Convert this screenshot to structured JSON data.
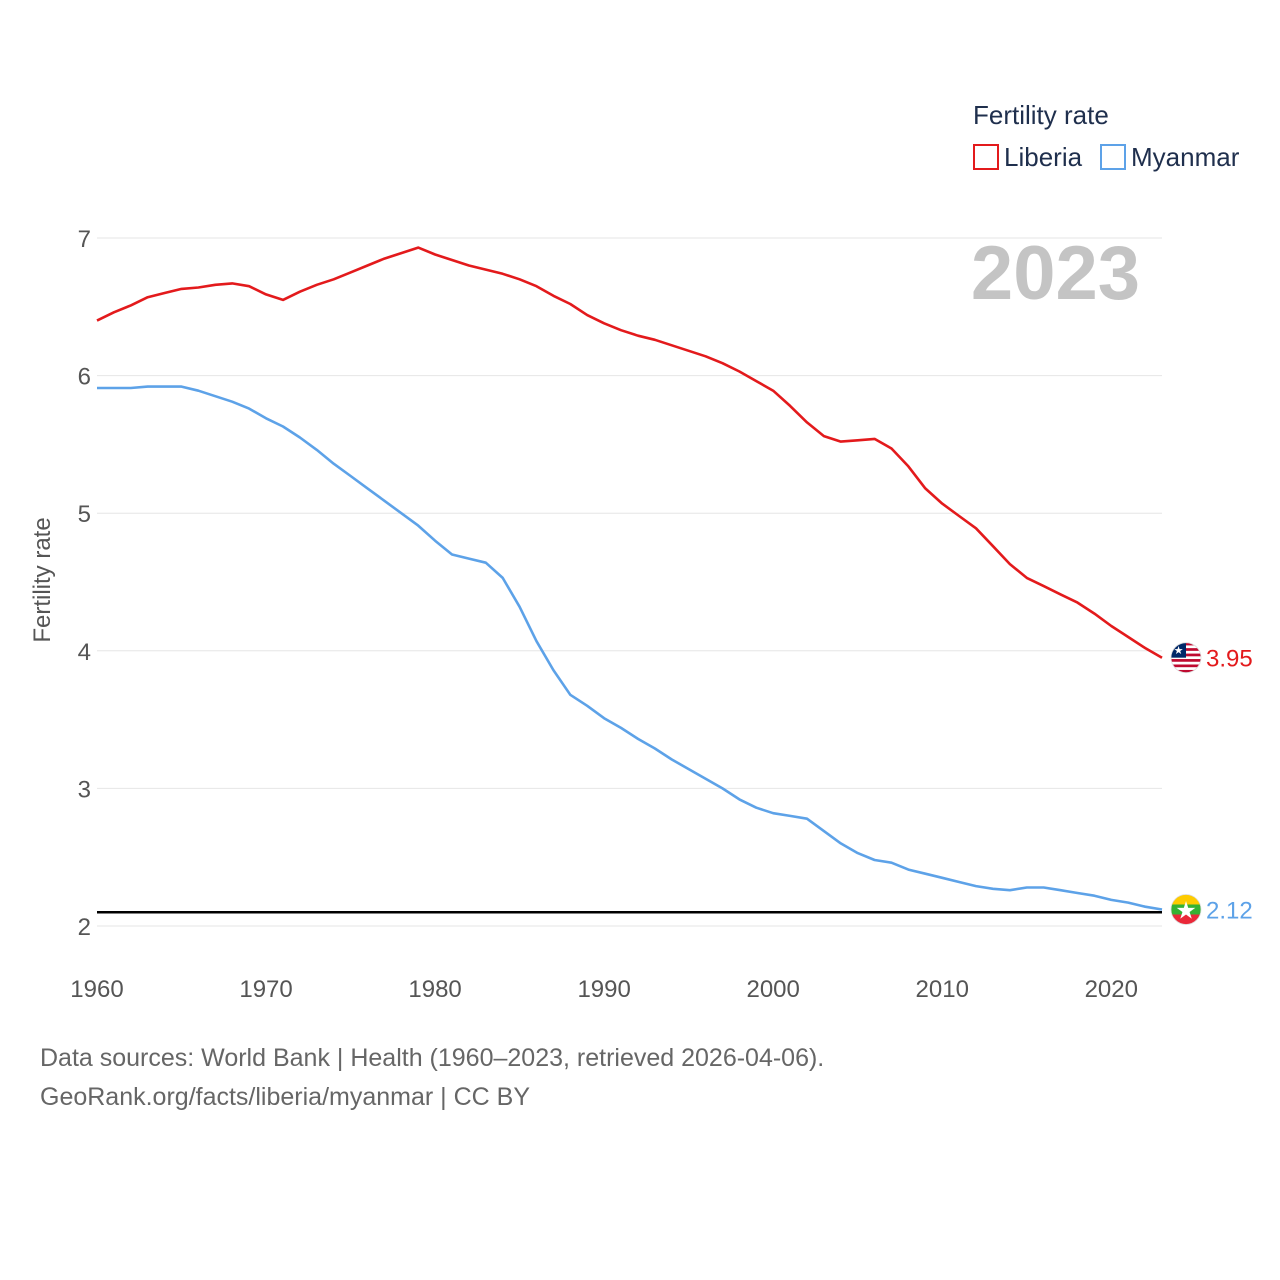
{
  "chart_data": {
    "type": "line",
    "title": "Fertility rate",
    "xlabel": "",
    "ylabel": "Fertility rate",
    "year_label": "2023",
    "xlim": [
      1960,
      2023
    ],
    "ylim": [
      2,
      7
    ],
    "x_ticks": [
      "1960",
      "1970",
      "1980",
      "1990",
      "2000",
      "2010",
      "2020"
    ],
    "y_ticks": [
      "2",
      "3",
      "4",
      "5",
      "6",
      "7"
    ],
    "reference_line": 2.1,
    "legend_position": "top-right",
    "x": [
      1960,
      1961,
      1962,
      1963,
      1964,
      1965,
      1966,
      1967,
      1968,
      1969,
      1970,
      1971,
      1972,
      1973,
      1974,
      1975,
      1976,
      1977,
      1978,
      1979,
      1980,
      1981,
      1982,
      1983,
      1984,
      1985,
      1986,
      1987,
      1988,
      1989,
      1990,
      1991,
      1992,
      1993,
      1994,
      1995,
      1996,
      1997,
      1998,
      1999,
      2000,
      2001,
      2002,
      2003,
      2004,
      2005,
      2006,
      2007,
      2008,
      2009,
      2010,
      2011,
      2012,
      2013,
      2014,
      2015,
      2016,
      2017,
      2018,
      2019,
      2020,
      2021,
      2022,
      2023
    ],
    "series": [
      {
        "name": "Liberia",
        "color": "#e31a1c",
        "end_label": "3.95",
        "flag": "liberia-flag-icon",
        "values": [
          6.4,
          6.46,
          6.51,
          6.57,
          6.6,
          6.63,
          6.64,
          6.66,
          6.67,
          6.65,
          6.59,
          6.55,
          6.61,
          6.66,
          6.7,
          6.75,
          6.8,
          6.85,
          6.89,
          6.93,
          6.88,
          6.84,
          6.8,
          6.77,
          6.74,
          6.7,
          6.65,
          6.58,
          6.52,
          6.44,
          6.38,
          6.33,
          6.29,
          6.26,
          6.22,
          6.18,
          6.14,
          6.09,
          6.03,
          5.96,
          5.89,
          5.78,
          5.66,
          5.56,
          5.52,
          5.53,
          5.54,
          5.47,
          5.34,
          5.18,
          5.07,
          4.98,
          4.89,
          4.76,
          4.63,
          4.53,
          4.47,
          4.41,
          4.35,
          4.27,
          4.18,
          4.1,
          4.02,
          3.95
        ]
      },
      {
        "name": "Myanmar",
        "color": "#5da2e8",
        "end_label": "2.12",
        "flag": "myanmar-flag-icon",
        "values": [
          5.91,
          5.91,
          5.91,
          5.92,
          5.92,
          5.92,
          5.89,
          5.85,
          5.81,
          5.76,
          5.69,
          5.63,
          5.55,
          5.46,
          5.36,
          5.27,
          5.18,
          5.09,
          5.0,
          4.91,
          4.8,
          4.7,
          4.67,
          4.64,
          4.53,
          4.32,
          4.07,
          3.86,
          3.68,
          3.6,
          3.51,
          3.44,
          3.36,
          3.29,
          3.21,
          3.14,
          3.07,
          3.0,
          2.92,
          2.86,
          2.82,
          2.8,
          2.78,
          2.69,
          2.6,
          2.53,
          2.48,
          2.46,
          2.41,
          2.38,
          2.35,
          2.32,
          2.29,
          2.27,
          2.26,
          2.28,
          2.28,
          2.26,
          2.24,
          2.22,
          2.19,
          2.17,
          2.14,
          2.12
        ]
      }
    ]
  },
  "footer": {
    "line1": "Data sources: World Bank | Health (1960–2023, retrieved 2026-04-06).",
    "line2": "GeoRank.org/facts/liberia/myanmar | CC BY"
  }
}
